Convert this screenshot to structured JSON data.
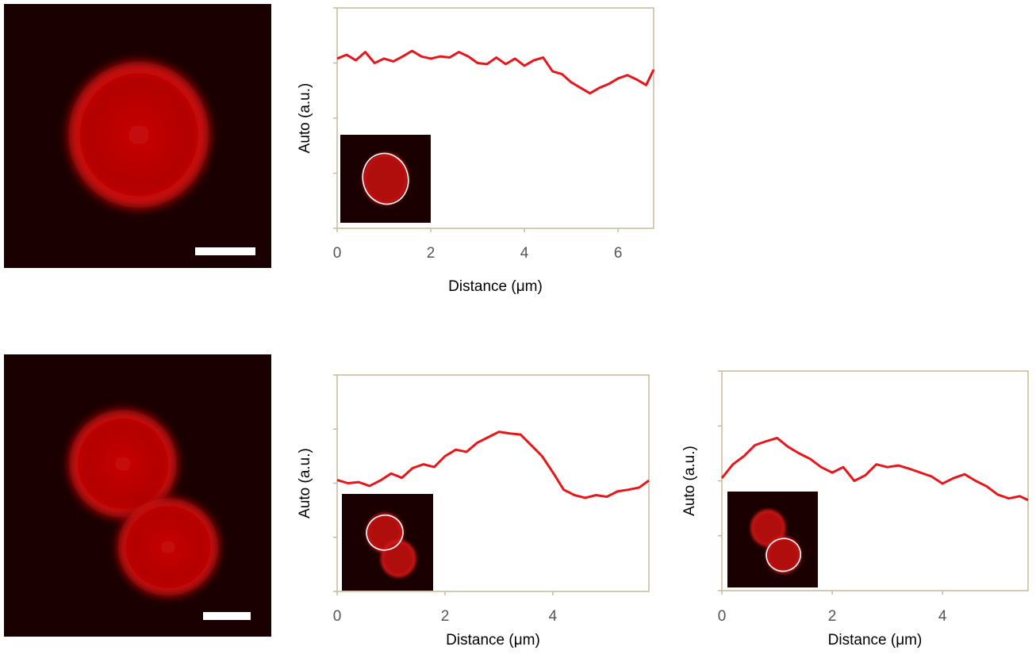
{
  "chart_data": [
    {
      "type": "line",
      "xlabel": "Distance (μm)",
      "ylabel": "Auto (a.u.)",
      "xlim": [
        0,
        6.76
      ],
      "xticks": [
        0,
        2,
        4,
        6
      ],
      "ylim": [
        0,
        4
      ],
      "yticks": [
        0,
        1,
        2,
        3,
        4
      ],
      "series": [
        {
          "color": "#e8161b",
          "x": [
            0,
            0.2,
            0.4,
            0.6,
            0.8,
            1.0,
            1.2,
            1.4,
            1.6,
            1.8,
            2.0,
            2.2,
            2.4,
            2.6,
            2.8,
            3.0,
            3.2,
            3.4,
            3.6,
            3.8,
            4.0,
            4.2,
            4.4,
            4.6,
            4.8,
            5.0,
            5.2,
            5.4,
            5.6,
            5.8,
            6.0,
            6.2,
            6.4,
            6.6,
            6.76
          ],
          "values": [
            3.08,
            3.15,
            3.05,
            3.2,
            3.0,
            3.08,
            3.03,
            3.12,
            3.22,
            3.12,
            3.08,
            3.12,
            3.1,
            3.2,
            3.12,
            3.0,
            2.98,
            3.1,
            2.98,
            3.08,
            2.95,
            3.05,
            3.1,
            2.85,
            2.8,
            2.65,
            2.55,
            2.45,
            2.55,
            2.62,
            2.72,
            2.78,
            2.7,
            2.6,
            2.88
          ]
        }
      ]
    },
    {
      "type": "line",
      "xlabel": "Distance (μm)",
      "ylabel": "Auto (a.u.)",
      "xlim": [
        0,
        5.78
      ],
      "xticks": [
        0,
        2,
        4
      ],
      "ylim": [
        0,
        4
      ],
      "yticks": [
        0,
        1,
        2,
        3,
        4
      ],
      "series": [
        {
          "color": "#e8161b",
          "x": [
            0,
            0.2,
            0.4,
            0.6,
            0.8,
            1.0,
            1.2,
            1.4,
            1.6,
            1.8,
            2.0,
            2.2,
            2.4,
            2.6,
            2.8,
            3.0,
            3.2,
            3.4,
            3.6,
            3.8,
            4.0,
            4.2,
            4.4,
            4.6,
            4.8,
            5.0,
            5.2,
            5.4,
            5.6,
            5.78
          ],
          "values": [
            2.06,
            2.0,
            2.02,
            1.95,
            2.05,
            2.18,
            2.1,
            2.28,
            2.35,
            2.3,
            2.5,
            2.62,
            2.58,
            2.75,
            2.85,
            2.95,
            2.92,
            2.9,
            2.7,
            2.5,
            2.2,
            1.88,
            1.78,
            1.73,
            1.78,
            1.75,
            1.85,
            1.88,
            1.92,
            2.05
          ]
        }
      ]
    },
    {
      "type": "line",
      "xlabel": "Distance (μm)",
      "ylabel": "Auto (a.u.)",
      "xlim": [
        0,
        5.55
      ],
      "xticks": [
        0,
        2,
        4
      ],
      "ylim": [
        0,
        4
      ],
      "yticks": [
        0,
        1,
        2,
        3,
        4
      ],
      "series": [
        {
          "color": "#e8161b",
          "x": [
            0,
            0.2,
            0.4,
            0.6,
            0.8,
            1.0,
            1.2,
            1.4,
            1.6,
            1.8,
            2.0,
            2.2,
            2.4,
            2.6,
            2.8,
            3.0,
            3.2,
            3.4,
            3.6,
            3.8,
            4.0,
            4.2,
            4.4,
            4.6,
            4.8,
            5.0,
            5.2,
            5.4,
            5.55
          ],
          "values": [
            2.05,
            2.3,
            2.45,
            2.65,
            2.72,
            2.78,
            2.62,
            2.5,
            2.4,
            2.25,
            2.15,
            2.25,
            2.0,
            2.1,
            2.3,
            2.25,
            2.28,
            2.22,
            2.15,
            2.08,
            1.95,
            2.05,
            2.12,
            2.0,
            1.9,
            1.75,
            1.68,
            1.72,
            1.65
          ]
        }
      ]
    }
  ]
}
